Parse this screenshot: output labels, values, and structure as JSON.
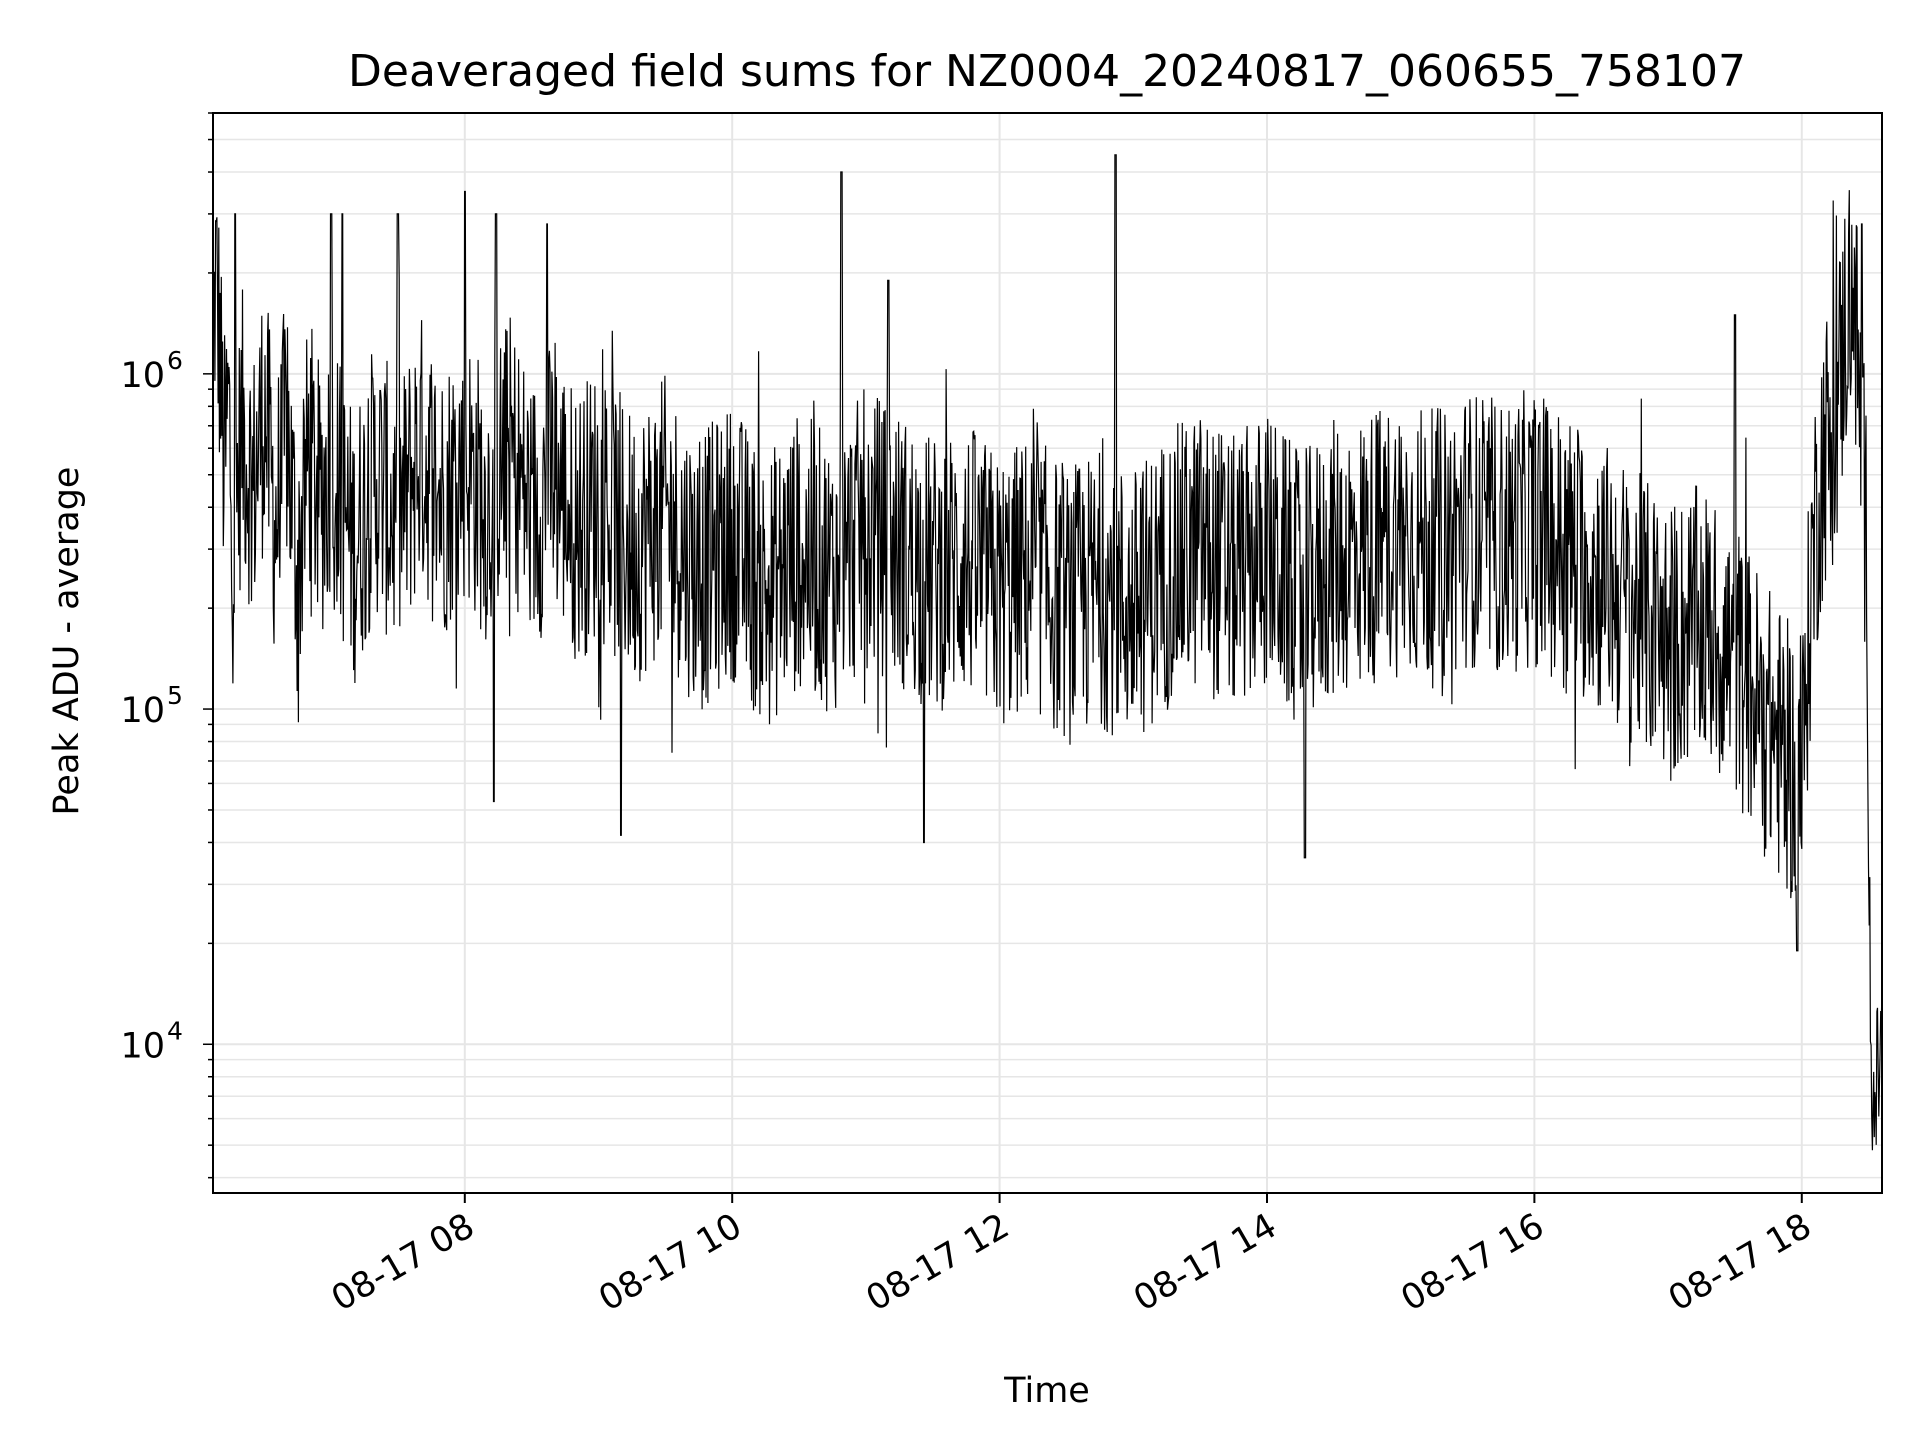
{
  "chart_data": {
    "type": "line",
    "title": "Deaveraged field sums for NZ0004_20240817_060655_758107",
    "xlabel": "Time",
    "ylabel": "Peak ADU - average",
    "yscale": "log",
    "grid": true,
    "line_color": "#000000",
    "grid_color": "#e6e6e6",
    "xlim": [
      "2024-08-17 06:07",
      "2024-08-17 18:36"
    ],
    "ylim": [
      3600,
      6000000
    ],
    "x_ticks": [
      {
        "value": "2024-08-17 08:00",
        "label": "08-17 08"
      },
      {
        "value": "2024-08-17 10:00",
        "label": "08-17 10"
      },
      {
        "value": "2024-08-17 12:00",
        "label": "08-17 12"
      },
      {
        "value": "2024-08-17 14:00",
        "label": "08-17 14"
      },
      {
        "value": "2024-08-17 16:00",
        "label": "08-17 16"
      },
      {
        "value": "2024-08-17 18:00",
        "label": "08-17 18"
      }
    ],
    "y_ticks": [
      {
        "value": 10000,
        "base": "10",
        "exp": "4"
      },
      {
        "value": 100000,
        "base": "10",
        "exp": "5"
      },
      {
        "value": 1000000,
        "base": "10",
        "exp": "6"
      }
    ],
    "series": [
      {
        "points": [
          [
            "2024-08-17 06:07",
            900000
          ],
          [
            "2024-08-17 06:08",
            2000000
          ],
          [
            "2024-08-17 06:10",
            1200000
          ],
          [
            "2024-08-17 06:12",
            500000
          ],
          [
            "2024-08-17 06:14",
            800000
          ],
          [
            "2024-08-17 06:16",
            300000
          ],
          [
            "2024-08-17 06:20",
            700000
          ],
          [
            "2024-08-17 06:25",
            450000
          ],
          [
            "2024-08-17 06:30",
            800000
          ],
          [
            "2024-08-17 06:35",
            350000
          ],
          [
            "2024-08-17 06:40",
            700000
          ],
          [
            "2024-08-17 06:45",
            250000
          ],
          [
            "2024-08-17 06:50",
            600000
          ],
          [
            "2024-08-17 06:55",
            400000
          ],
          [
            "2024-08-17 07:00",
            550000
          ],
          [
            "2024-08-17 07:10",
            300000
          ],
          [
            "2024-08-17 07:20",
            500000
          ],
          [
            "2024-08-17 07:30",
            350000
          ],
          [
            "2024-08-17 07:40",
            600000
          ],
          [
            "2024-08-17 07:50",
            420000
          ],
          [
            "2024-08-17 08:00",
            550000
          ],
          [
            "2024-08-17 08:10",
            400000
          ],
          [
            "2024-08-17 08:20",
            600000
          ],
          [
            "2024-08-17 08:30",
            380000
          ],
          [
            "2024-08-17 08:40",
            500000
          ],
          [
            "2024-08-17 08:50",
            350000
          ],
          [
            "2024-08-17 09:00",
            420000
          ],
          [
            "2024-08-17 09:15",
            300000
          ],
          [
            "2024-08-17 09:30",
            380000
          ],
          [
            "2024-08-17 09:45",
            250000
          ],
          [
            "2024-08-17 10:00",
            320000
          ],
          [
            "2024-08-17 10:15",
            220000
          ],
          [
            "2024-08-17 10:30",
            300000
          ],
          [
            "2024-08-17 10:45",
            250000
          ],
          [
            "2024-08-17 11:00",
            350000
          ],
          [
            "2024-08-17 11:15",
            300000
          ],
          [
            "2024-08-17 11:30",
            250000
          ],
          [
            "2024-08-17 11:45",
            280000
          ],
          [
            "2024-08-17 12:00",
            220000
          ],
          [
            "2024-08-17 12:15",
            260000
          ],
          [
            "2024-08-17 12:30",
            200000
          ],
          [
            "2024-08-17 12:45",
            230000
          ],
          [
            "2024-08-17 13:00",
            200000
          ],
          [
            "2024-08-17 13:15",
            260000
          ],
          [
            "2024-08-17 13:30",
            300000
          ],
          [
            "2024-08-17 13:45",
            250000
          ],
          [
            "2024-08-17 14:00",
            300000
          ],
          [
            "2024-08-17 14:15",
            220000
          ],
          [
            "2024-08-17 14:30",
            280000
          ],
          [
            "2024-08-17 14:45",
            300000
          ],
          [
            "2024-08-17 15:00",
            330000
          ],
          [
            "2024-08-17 15:15",
            300000
          ],
          [
            "2024-08-17 15:30",
            350000
          ],
          [
            "2024-08-17 15:45",
            320000
          ],
          [
            "2024-08-17 16:00",
            350000
          ],
          [
            "2024-08-17 16:15",
            300000
          ],
          [
            "2024-08-17 16:30",
            250000
          ],
          [
            "2024-08-17 16:45",
            200000
          ],
          [
            "2024-08-17 17:00",
            160000
          ],
          [
            "2024-08-17 17:15",
            180000
          ],
          [
            "2024-08-17 17:30",
            140000
          ],
          [
            "2024-08-17 17:45",
            90000
          ],
          [
            "2024-08-17 18:00",
            60000
          ],
          [
            "2024-08-17 18:05",
            300000
          ],
          [
            "2024-08-17 18:10",
            600000
          ],
          [
            "2024-08-17 18:15",
            700000
          ],
          [
            "2024-08-17 18:20",
            1500000
          ],
          [
            "2024-08-17 18:23",
            2000000
          ],
          [
            "2024-08-17 18:26",
            800000
          ],
          [
            "2024-08-17 18:29",
            300000
          ],
          [
            "2024-08-17 18:31",
            10000
          ],
          [
            "2024-08-17 18:33",
            6000
          ],
          [
            "2024-08-17 18:35",
            10000
          ]
        ],
        "spikes": [
          [
            "2024-08-17 06:17",
            3000000
          ],
          [
            "2024-08-17 07:00",
            3000000
          ],
          [
            "2024-08-17 07:05",
            3000000
          ],
          [
            "2024-08-17 07:30",
            3000000
          ],
          [
            "2024-08-17 08:00",
            3500000
          ],
          [
            "2024-08-17 08:14",
            3000000
          ],
          [
            "2024-08-17 08:37",
            2800000
          ],
          [
            "2024-08-17 10:49",
            4000000
          ],
          [
            "2024-08-17 11:10",
            1900000
          ],
          [
            "2024-08-17 12:52",
            4500000
          ],
          [
            "2024-08-17 17:30",
            1500000
          ],
          [
            "2024-08-17 18:27",
            2800000
          ],
          [
            "2024-08-17 08:13",
            53000
          ],
          [
            "2024-08-17 09:10",
            42000
          ],
          [
            "2024-08-17 11:26",
            40000
          ],
          [
            "2024-08-17 14:17",
            36000
          ],
          [
            "2024-08-17 17:58",
            19000
          ]
        ],
        "typical_range": [
          50000,
          1300000
        ]
      }
    ]
  }
}
